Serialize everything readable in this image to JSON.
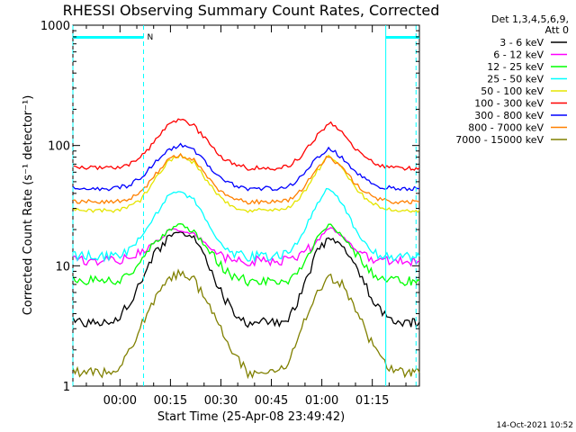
{
  "chart_data": {
    "type": "line",
    "title": "RHESSI Observing Summary Count Rates, Corrected",
    "xlabel": "Start Time (25-Apr-08 23:49:42)",
    "ylabel": "Corrected Count Rate (s⁻¹ detector⁻¹)",
    "yscale": "log",
    "ylim": [
      1,
      1000
    ],
    "xlim": [
      -14,
      89
    ],
    "x_unit": "minutes after 00:00",
    "x_ticks": [
      {
        "v": 0,
        "label": "00:00"
      },
      {
        "v": 15,
        "label": "00:15"
      },
      {
        "v": 30,
        "label": "00:30"
      },
      {
        "v": 45,
        "label": "00:45"
      },
      {
        "v": 60,
        "label": "01:00"
      },
      {
        "v": 75,
        "label": "01:15"
      }
    ],
    "y_ticks": [
      {
        "v": 1,
        "label": "1"
      },
      {
        "v": 10,
        "label": "10"
      },
      {
        "v": 100,
        "label": "100"
      },
      {
        "v": 1000,
        "label": "1000"
      }
    ],
    "legend_header": [
      "Det 1,3,4,5,6,9,",
      "Att 0"
    ],
    "legend_position": "right",
    "x_samples": [
      -14,
      -10,
      -6,
      -2,
      2,
      6,
      10,
      14,
      18,
      22,
      26,
      30,
      34,
      38,
      42,
      46,
      50,
      54,
      58,
      62,
      66,
      70,
      74,
      78,
      82,
      86,
      89
    ],
    "series": [
      {
        "name": "3 - 6 keV",
        "color": "#000000",
        "values": [
          3.4,
          3.4,
          3.4,
          3.4,
          4.5,
          7,
          12,
          17,
          19,
          17,
          11,
          6,
          4,
          3.4,
          3.4,
          3.4,
          3.5,
          6,
          12,
          17,
          15,
          10,
          6,
          4,
          3.4,
          3.4,
          3.4
        ]
      },
      {
        "name": "6 - 12 keV",
        "color": "#ff00ff",
        "values": [
          11,
          11,
          11,
          11,
          11.5,
          13,
          15,
          19,
          20,
          18,
          15,
          12,
          11,
          11,
          11,
          11,
          11,
          12.5,
          15,
          21,
          18,
          14,
          11.5,
          11,
          11,
          11,
          11
        ]
      },
      {
        "name": "12 - 25 keV",
        "color": "#00ff00",
        "values": [
          7.5,
          7.5,
          7.5,
          7.5,
          8,
          10,
          15,
          19,
          22,
          19,
          14,
          10,
          8,
          7.5,
          7.5,
          7.5,
          7.5,
          10,
          16,
          22,
          18,
          13,
          9,
          7.5,
          7.5,
          7.5,
          7.5
        ]
      },
      {
        "name": "25 - 50 keV",
        "color": "#00ffff",
        "values": [
          12,
          12,
          12,
          12,
          13,
          17,
          25,
          37,
          42,
          35,
          23,
          15,
          12.5,
          12,
          12,
          12,
          12.5,
          18,
          30,
          45,
          33,
          20,
          14,
          12,
          12,
          12,
          12
        ]
      },
      {
        "name": "50 - 100 keV",
        "color": "#e5e500",
        "values": [
          29,
          29,
          29,
          29,
          30,
          35,
          50,
          72,
          83,
          72,
          50,
          36,
          31,
          29,
          29,
          29,
          30,
          38,
          58,
          82,
          65,
          45,
          34,
          30,
          29,
          29,
          29
        ]
      },
      {
        "name": "100 - 300 keV",
        "color": "#ff0000",
        "values": [
          65,
          65,
          65,
          65,
          68,
          78,
          105,
          145,
          165,
          145,
          108,
          80,
          70,
          65,
          65,
          65,
          67,
          82,
          115,
          155,
          130,
          95,
          75,
          67,
          65,
          65,
          65
        ]
      },
      {
        "name": "300 - 800 keV",
        "color": "#0000ff",
        "values": [
          44,
          44,
          44,
          44,
          46,
          53,
          70,
          90,
          100,
          90,
          70,
          53,
          47,
          44,
          44,
          44,
          45,
          55,
          75,
          95,
          80,
          60,
          50,
          45,
          44,
          44,
          44
        ]
      },
      {
        "name": "800 - 7000 keV",
        "color": "#ff8000",
        "values": [
          34,
          34,
          34,
          34,
          35,
          40,
          55,
          75,
          85,
          75,
          55,
          41,
          36,
          34,
          34,
          34,
          35,
          43,
          60,
          82,
          65,
          48,
          39,
          35,
          34,
          34,
          34
        ]
      },
      {
        "name": "7000 - 15000 keV",
        "color": "#808000",
        "values": [
          1.3,
          1.3,
          1.3,
          1.3,
          1.8,
          3,
          5,
          7.5,
          9,
          7.5,
          5,
          3,
          1.8,
          1.3,
          1.3,
          1.3,
          1.5,
          3,
          5.5,
          8,
          7,
          4.5,
          2.5,
          1.6,
          1.3,
          1.3,
          1.3
        ]
      }
    ],
    "annotations": {
      "bar_label": "N",
      "bar_color": "#00ffff",
      "night_bars": [
        [
          -14,
          7
        ],
        [
          79,
          89
        ]
      ],
      "dashed_lines": [
        -14,
        7,
        88
      ],
      "solid_lines": [
        79
      ]
    }
  },
  "footer": {
    "timestamp": "14-Oct-2021 10:52"
  }
}
